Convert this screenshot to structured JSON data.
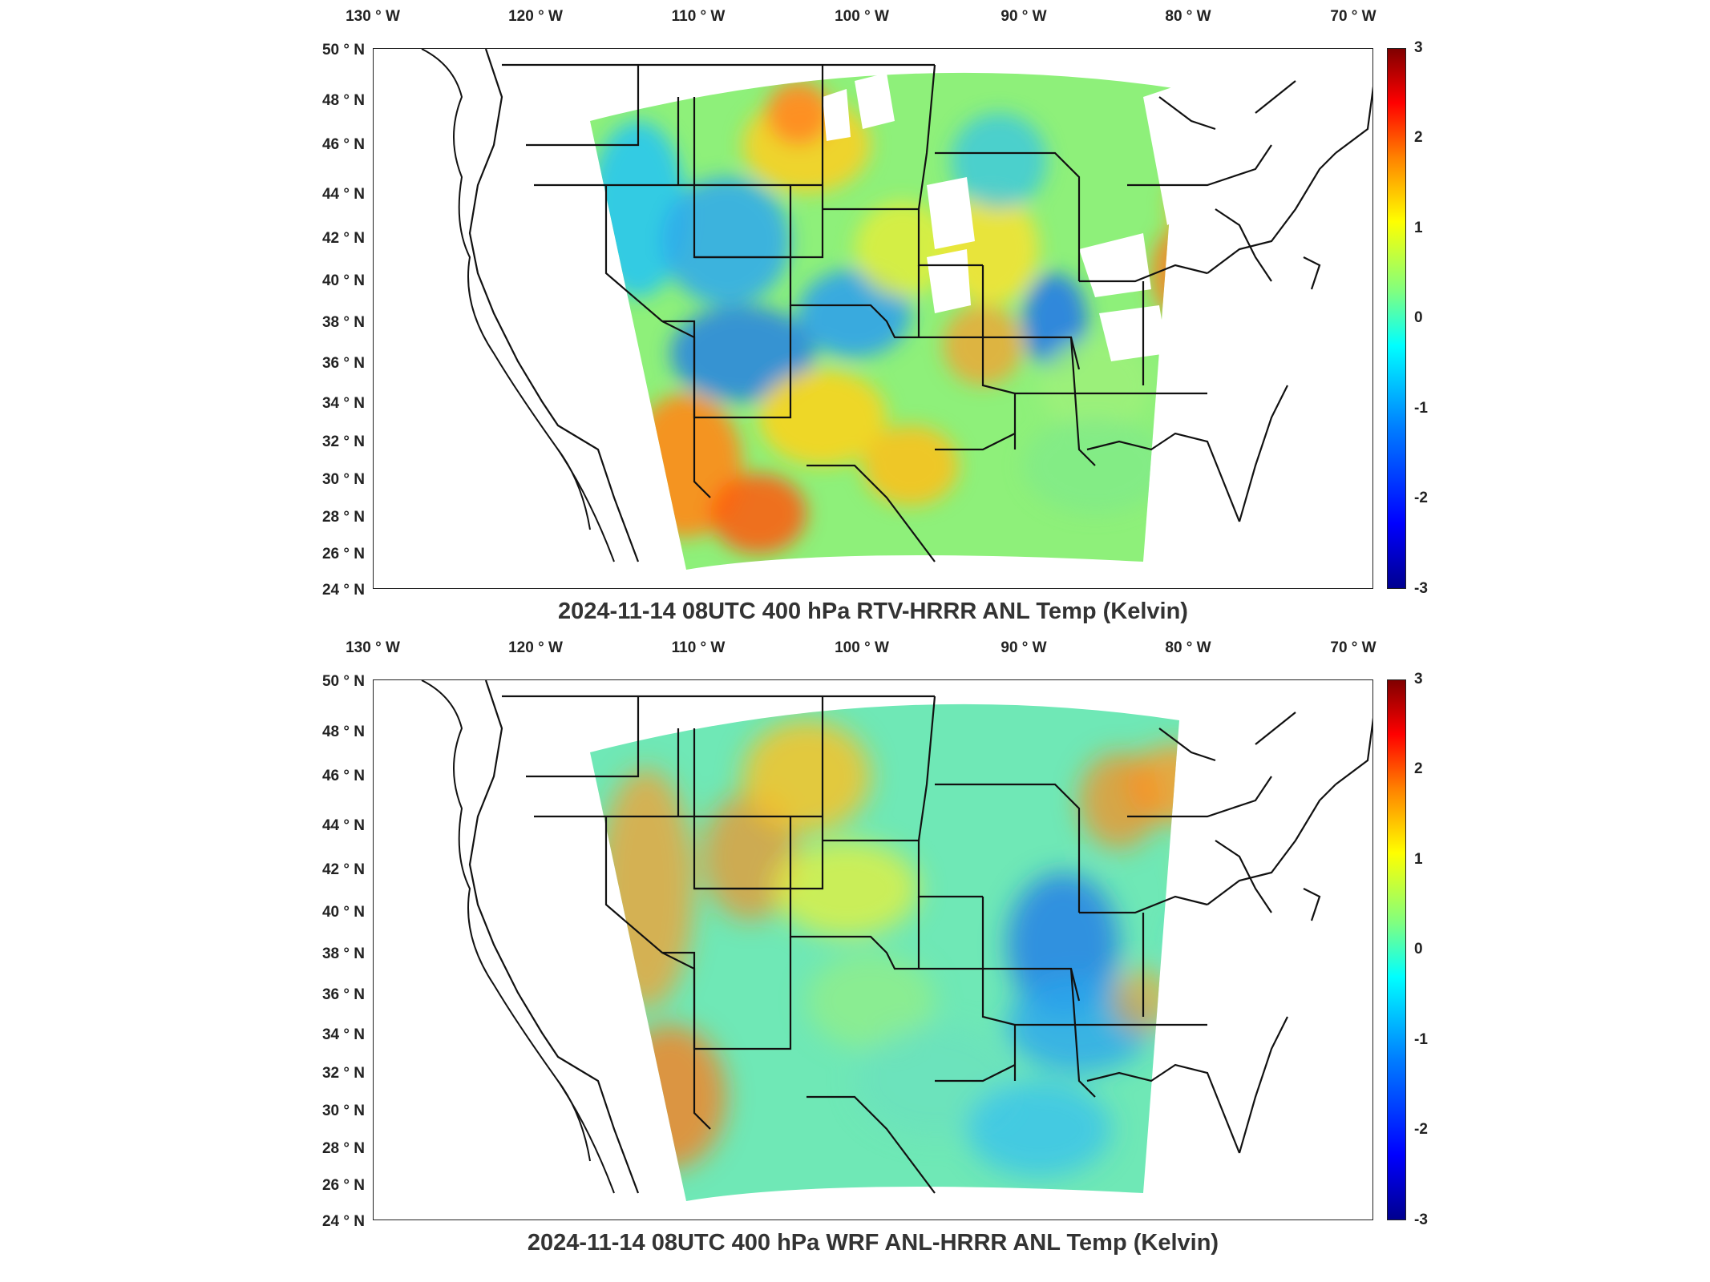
{
  "lon_labels": [
    {
      "text": "130 ° W"
    },
    {
      "text": "120 ° W"
    },
    {
      "text": "110 ° W"
    },
    {
      "text": "100 ° W"
    },
    {
      "text": "90 ° W"
    },
    {
      "text": "80 ° W"
    },
    {
      "text": "70 ° W"
    }
  ],
  "lat_labels": [
    {
      "text": "50 ° N"
    },
    {
      "text": "48 ° N"
    },
    {
      "text": "46 ° N"
    },
    {
      "text": "44 ° N"
    },
    {
      "text": "42 ° N"
    },
    {
      "text": "40 ° N"
    },
    {
      "text": "38 ° N"
    },
    {
      "text": "36 ° N"
    },
    {
      "text": "34 ° N"
    },
    {
      "text": "32 ° N"
    },
    {
      "text": "30 ° N"
    },
    {
      "text": "28 ° N"
    },
    {
      "text": "26 ° N"
    },
    {
      "text": "24 ° N"
    }
  ],
  "colorbar": {
    "ticks": [
      "3",
      "2",
      "1",
      "0",
      "-1",
      "-2",
      "-3"
    ],
    "range": [
      -3,
      3
    ],
    "colors": [
      "#00008f",
      "#0000ff",
      "#0080ff",
      "#00ffff",
      "#80ff80",
      "#ffff00",
      "#ff8000",
      "#ff0000",
      "#800000"
    ]
  },
  "panels": [
    {
      "title": "2024-11-14 08UTC 400 hPa RTV-HRRR ANL Temp (Kelvin)"
    },
    {
      "title": "2024-11-14 08UTC 400 hPa WRF ANL-HRRR ANL Temp (Kelvin)"
    }
  ]
}
